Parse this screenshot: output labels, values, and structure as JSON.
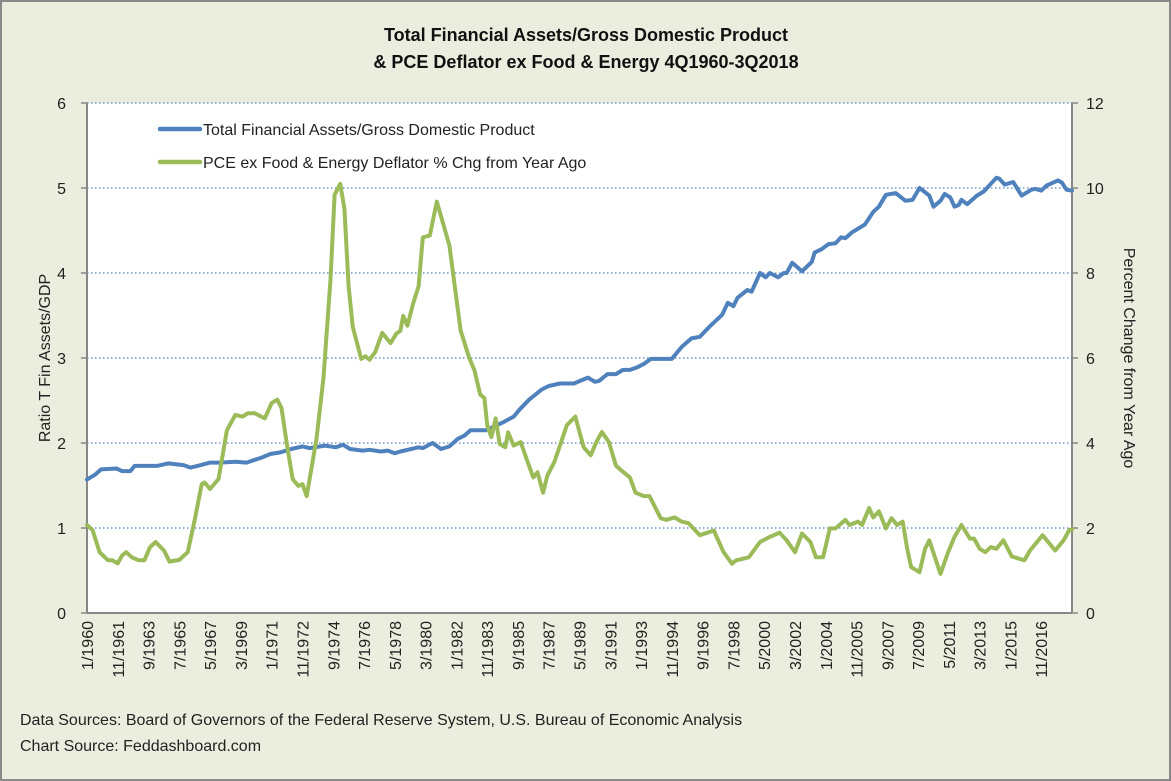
{
  "chart_data": {
    "type": "line",
    "title": [
      "Total Financial  Assets/Gross Domestic Product",
      "& PCE  Deflator ex Food & Energy 4Q1960-3Q2018"
    ],
    "ylabel": "Ratio T Fin Assets/GDP",
    "y2label": "Percent Change from Year Ago",
    "ylim": [
      0,
      6
    ],
    "y2lim": [
      0,
      12
    ],
    "yticks": [
      "0",
      "1",
      "2",
      "3",
      "4",
      "5",
      "6"
    ],
    "y2ticks": [
      "0",
      "2",
      "4",
      "6",
      "8",
      "10",
      "12"
    ],
    "xticks": [
      "1/1960",
      "11/1961",
      "9/1963",
      "7/1965",
      "5/1967",
      "3/1969",
      "1/1971",
      "11/1972",
      "9/1974",
      "7/1976",
      "5/1978",
      "3/1980",
      "1/1982",
      "11/1983",
      "9/1985",
      "7/1987",
      "5/1989",
      "3/1991",
      "1/1993",
      "11/1994",
      "9/1996",
      "7/1998",
      "5/2000",
      "3/2002",
      "1/2004",
      "11/2005",
      "9/2007",
      "7/2009",
      "5/2011",
      "3/2013",
      "1/2015",
      "11/2016"
    ],
    "grid": "horizontal dotted",
    "legend": "top-left",
    "sources": [
      "Data Sources: Board of Governors of the Federal Reserve System, U.S. Bureau of Economic Analysis",
      "Chart Source: Feddashboard.com"
    ],
    "series": [
      {
        "name": "Total Financial Assets/Gross Domestic Product",
        "axis": "left",
        "color": "#4F81BD",
        "points": [
          [
            "1960-01",
            1.57
          ],
          [
            "1960-07",
            1.63
          ],
          [
            "1960-11",
            1.69
          ],
          [
            "1961-10",
            1.7
          ],
          [
            "1962-02",
            1.67
          ],
          [
            "1962-08",
            1.67
          ],
          [
            "1962-11",
            1.73
          ],
          [
            "1963-10",
            1.73
          ],
          [
            "1964-03",
            1.73
          ],
          [
            "1964-11",
            1.76
          ],
          [
            "1965-10",
            1.74
          ],
          [
            "1966-03",
            1.71
          ],
          [
            "1966-08",
            1.73
          ],
          [
            "1967-05",
            1.77
          ],
          [
            "1967-12",
            1.77
          ],
          [
            "1968-11",
            1.78
          ],
          [
            "1969-07",
            1.77
          ],
          [
            "1970-06",
            1.83
          ],
          [
            "1970-12",
            1.87
          ],
          [
            "1971-07",
            1.89
          ],
          [
            "1972-03",
            1.93
          ],
          [
            "1972-11",
            1.96
          ],
          [
            "1973-04",
            1.94
          ],
          [
            "1974-03",
            1.97
          ],
          [
            "1974-11",
            1.95
          ],
          [
            "1975-04",
            1.98
          ],
          [
            "1975-09",
            1.93
          ],
          [
            "1976-06",
            1.91
          ],
          [
            "1976-11",
            1.92
          ],
          [
            "1977-07",
            1.9
          ],
          [
            "1977-12",
            1.91
          ],
          [
            "1978-05",
            1.88
          ],
          [
            "1978-09",
            1.9
          ],
          [
            "1979-10",
            1.95
          ],
          [
            "1980-01",
            1.94
          ],
          [
            "1980-08",
            2.0
          ],
          [
            "1981-02",
            1.93
          ],
          [
            "1981-08",
            1.96
          ],
          [
            "1982-02",
            2.05
          ],
          [
            "1982-07",
            2.09
          ],
          [
            "1982-11",
            2.15
          ],
          [
            "1983-10",
            2.15
          ],
          [
            "1984-10",
            2.24
          ],
          [
            "1985-06",
            2.31
          ],
          [
            "1985-10",
            2.39
          ],
          [
            "1986-05",
            2.51
          ],
          [
            "1987-02",
            2.63
          ],
          [
            "1987-07",
            2.67
          ],
          [
            "1988-03",
            2.7
          ],
          [
            "1989-01",
            2.7
          ],
          [
            "1989-11",
            2.77
          ],
          [
            "1990-04",
            2.72
          ],
          [
            "1990-07",
            2.73
          ],
          [
            "1991-01",
            2.81
          ],
          [
            "1991-07",
            2.81
          ],
          [
            "1991-12",
            2.86
          ],
          [
            "1992-05",
            2.86
          ],
          [
            "1992-10",
            2.89
          ],
          [
            "1993-03",
            2.93
          ],
          [
            "1993-08",
            2.99
          ],
          [
            "1994-07",
            2.99
          ],
          [
            "1994-11",
            2.99
          ],
          [
            "1995-06",
            3.13
          ],
          [
            "1996-01",
            3.23
          ],
          [
            "1996-07",
            3.25
          ],
          [
            "1997-02",
            3.37
          ],
          [
            "1997-11",
            3.51
          ],
          [
            "1998-03",
            3.65
          ],
          [
            "1998-07",
            3.61
          ],
          [
            "1998-10",
            3.71
          ],
          [
            "1999-05",
            3.8
          ],
          [
            "1999-08",
            3.78
          ],
          [
            "2000-02",
            4.0
          ],
          [
            "2000-06",
            3.95
          ],
          [
            "2000-09",
            4.0
          ],
          [
            "2001-03",
            3.95
          ],
          [
            "2001-07",
            4.0
          ],
          [
            "2001-09",
            4.0
          ],
          [
            "2002-01",
            4.12
          ],
          [
            "2002-08",
            4.02
          ],
          [
            "2003-03",
            4.13
          ],
          [
            "2003-05",
            4.24
          ],
          [
            "2003-10",
            4.28
          ],
          [
            "2004-03",
            4.34
          ],
          [
            "2004-08",
            4.35
          ],
          [
            "2004-12",
            4.42
          ],
          [
            "2005-03",
            4.41
          ],
          [
            "2005-08",
            4.48
          ],
          [
            "2006-05",
            4.57
          ],
          [
            "2006-11",
            4.72
          ],
          [
            "2007-03",
            4.78
          ],
          [
            "2007-08",
            4.92
          ],
          [
            "2008-03",
            4.94
          ],
          [
            "2008-10",
            4.85
          ],
          [
            "2009-03",
            4.86
          ],
          [
            "2009-08",
            5.0
          ],
          [
            "2010-03",
            4.91
          ],
          [
            "2010-06",
            4.78
          ],
          [
            "2010-11",
            4.85
          ],
          [
            "2011-02",
            4.93
          ],
          [
            "2011-06",
            4.89
          ],
          [
            "2011-09",
            4.78
          ],
          [
            "2011-12",
            4.8
          ],
          [
            "2012-02",
            4.86
          ],
          [
            "2012-06",
            4.81
          ],
          [
            "2013-01",
            4.91
          ],
          [
            "2013-06",
            4.96
          ],
          [
            "2014-03",
            5.12
          ],
          [
            "2014-05",
            5.11
          ],
          [
            "2014-09",
            5.04
          ],
          [
            "2015-03",
            5.07
          ],
          [
            "2015-09",
            4.91
          ],
          [
            "2016-04",
            4.98
          ],
          [
            "2016-07",
            4.99
          ],
          [
            "2016-11",
            4.97
          ],
          [
            "2017-03",
            5.03
          ],
          [
            "2017-11",
            5.09
          ],
          [
            "2018-02",
            5.06
          ],
          [
            "2018-05",
            4.98
          ],
          [
            "2018-09",
            4.97
          ]
        ]
      },
      {
        "name": "PCE ex Food & Energy Deflator % Chg from Year Ago",
        "axis": "right",
        "color": "#9BBB59",
        "points": [
          [
            "1960-01",
            2.07
          ],
          [
            "1960-05",
            1.95
          ],
          [
            "1960-10",
            1.43
          ],
          [
            "1961-04",
            1.24
          ],
          [
            "1961-07",
            1.24
          ],
          [
            "1961-11",
            1.17
          ],
          [
            "1962-02",
            1.35
          ],
          [
            "1962-05",
            1.43
          ],
          [
            "1962-09",
            1.31
          ],
          [
            "1963-02",
            1.24
          ],
          [
            "1963-06",
            1.24
          ],
          [
            "1963-10",
            1.55
          ],
          [
            "1964-02",
            1.67
          ],
          [
            "1964-08",
            1.47
          ],
          [
            "1964-12",
            1.21
          ],
          [
            "1965-07",
            1.25
          ],
          [
            "1966-01",
            1.43
          ],
          [
            "1966-06",
            2.19
          ],
          [
            "1966-11",
            3.03
          ],
          [
            "1967-01",
            3.07
          ],
          [
            "1967-05",
            2.92
          ],
          [
            "1967-11",
            3.15
          ],
          [
            "1968-05",
            4.3
          ],
          [
            "1968-11",
            4.66
          ],
          [
            "1969-04",
            4.62
          ],
          [
            "1969-08",
            4.7
          ],
          [
            "1970-01",
            4.7
          ],
          [
            "1970-08",
            4.58
          ],
          [
            "1971-01",
            4.94
          ],
          [
            "1971-05",
            5.02
          ],
          [
            "1971-08",
            4.82
          ],
          [
            "1971-12",
            3.94
          ],
          [
            "1972-04",
            3.15
          ],
          [
            "1972-08",
            2.99
          ],
          [
            "1972-11",
            3.03
          ],
          [
            "1973-02",
            2.75
          ],
          [
            "1973-09",
            4.1
          ],
          [
            "1974-02",
            5.54
          ],
          [
            "1974-07",
            7.85
          ],
          [
            "1974-10",
            9.84
          ],
          [
            "1975-02",
            10.1
          ],
          [
            "1975-05",
            9.52
          ],
          [
            "1975-08",
            7.69
          ],
          [
            "1975-11",
            6.73
          ],
          [
            "1976-05",
            5.98
          ],
          [
            "1976-08",
            6.04
          ],
          [
            "1976-11",
            5.96
          ],
          [
            "1977-03",
            6.14
          ],
          [
            "1977-08",
            6.59
          ],
          [
            "1978-02",
            6.35
          ],
          [
            "1978-06",
            6.57
          ],
          [
            "1978-09",
            6.64
          ],
          [
            "1978-11",
            6.99
          ],
          [
            "1979-02",
            6.76
          ],
          [
            "1979-06",
            7.27
          ],
          [
            "1979-10",
            7.69
          ],
          [
            "1980-01",
            8.84
          ],
          [
            "1980-06",
            8.88
          ],
          [
            "1980-11",
            9.68
          ],
          [
            "1981-08",
            8.65
          ],
          [
            "1982-04",
            6.65
          ],
          [
            "1982-10",
            6.02
          ],
          [
            "1983-02",
            5.7
          ],
          [
            "1983-06",
            5.14
          ],
          [
            "1983-09",
            5.06
          ],
          [
            "1983-11",
            4.42
          ],
          [
            "1984-02",
            4.14
          ],
          [
            "1984-05",
            4.58
          ],
          [
            "1984-08",
            3.98
          ],
          [
            "1984-12",
            3.9
          ],
          [
            "1985-02",
            4.25
          ],
          [
            "1985-06",
            3.94
          ],
          [
            "1985-11",
            4.02
          ],
          [
            "1986-04",
            3.55
          ],
          [
            "1986-08",
            3.19
          ],
          [
            "1986-11",
            3.31
          ],
          [
            "1987-03",
            2.83
          ],
          [
            "1987-06",
            3.23
          ],
          [
            "1987-11",
            3.55
          ],
          [
            "1988-08",
            4.42
          ],
          [
            "1989-02",
            4.62
          ],
          [
            "1989-08",
            3.9
          ],
          [
            "1990-01",
            3.71
          ],
          [
            "1990-05",
            4.02
          ],
          [
            "1990-09",
            4.26
          ],
          [
            "1991-02",
            4.02
          ],
          [
            "1991-07",
            3.47
          ],
          [
            "1991-11",
            3.35
          ],
          [
            "1992-05",
            3.19
          ],
          [
            "1992-09",
            2.83
          ],
          [
            "1993-03",
            2.75
          ],
          [
            "1993-07",
            2.75
          ],
          [
            "1994-03",
            2.23
          ],
          [
            "1994-07",
            2.19
          ],
          [
            "1995-01",
            2.25
          ],
          [
            "1995-06",
            2.15
          ],
          [
            "1995-11",
            2.11
          ],
          [
            "1996-07",
            1.83
          ],
          [
            "1997-05",
            1.94
          ],
          [
            "1997-12",
            1.43
          ],
          [
            "1998-06",
            1.16
          ],
          [
            "1998-09",
            1.24
          ],
          [
            "1999-06",
            1.31
          ],
          [
            "2000-02",
            1.67
          ],
          [
            "2000-09",
            1.79
          ],
          [
            "2001-04",
            1.89
          ],
          [
            "2001-09",
            1.71
          ],
          [
            "2002-03",
            1.43
          ],
          [
            "2002-08",
            1.87
          ],
          [
            "2003-02",
            1.67
          ],
          [
            "2003-06",
            1.31
          ],
          [
            "2003-11",
            1.31
          ],
          [
            "2004-04",
            1.99
          ],
          [
            "2004-08",
            1.99
          ],
          [
            "2005-03",
            2.19
          ],
          [
            "2005-06",
            2.07
          ],
          [
            "2005-12",
            2.15
          ],
          [
            "2006-03",
            2.07
          ],
          [
            "2006-08",
            2.47
          ],
          [
            "2006-11",
            2.25
          ],
          [
            "2007-03",
            2.39
          ],
          [
            "2007-08",
            1.99
          ],
          [
            "2007-12",
            2.23
          ],
          [
            "2008-04",
            2.07
          ],
          [
            "2008-08",
            2.15
          ],
          [
            "2008-11",
            1.55
          ],
          [
            "2009-02",
            1.08
          ],
          [
            "2009-08",
            0.96
          ],
          [
            "2009-12",
            1.51
          ],
          [
            "2010-03",
            1.71
          ],
          [
            "2010-07",
            1.31
          ],
          [
            "2010-11",
            0.92
          ],
          [
            "2011-04",
            1.39
          ],
          [
            "2011-09",
            1.79
          ],
          [
            "2012-02",
            2.07
          ],
          [
            "2012-08",
            1.75
          ],
          [
            "2012-11",
            1.75
          ],
          [
            "2013-03",
            1.51
          ],
          [
            "2013-07",
            1.43
          ],
          [
            "2013-11",
            1.55
          ],
          [
            "2014-03",
            1.51
          ],
          [
            "2014-08",
            1.71
          ],
          [
            "2015-02",
            1.33
          ],
          [
            "2015-11",
            1.24
          ],
          [
            "2016-03",
            1.47
          ],
          [
            "2016-12",
            1.83
          ],
          [
            "2017-09",
            1.47
          ],
          [
            "2018-03",
            1.71
          ],
          [
            "2018-07",
            1.95
          ],
          [
            "2018-09",
            1.97
          ]
        ]
      }
    ]
  },
  "colors": {
    "background": "#EBEEDF",
    "plot": "#FFFFFF",
    "grid": "#4F81BD",
    "axis": "#878787"
  }
}
